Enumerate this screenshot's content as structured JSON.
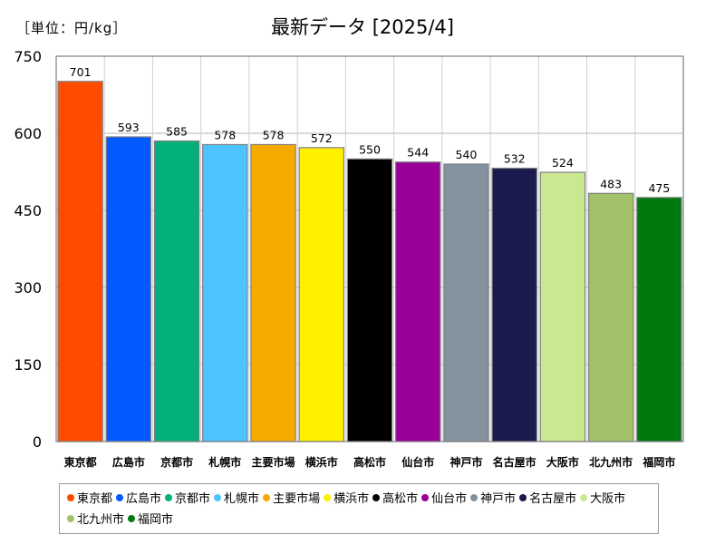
{
  "unit_label": "［単位：円/kg］",
  "chart_data": {
    "type": "bar",
    "title": "最新データ [2025/4]",
    "categories": [
      "東京都",
      "広島市",
      "京都市",
      "札幌市",
      "主要市場",
      "横浜市",
      "高松市",
      "仙台市",
      "神戸市",
      "名古屋市",
      "大阪市",
      "北九州市",
      "福岡市"
    ],
    "values": [
      701,
      593,
      585,
      578,
      578,
      572,
      550,
      544,
      540,
      532,
      524,
      483,
      475
    ],
    "colors": [
      "#ff4b00",
      "#005aff",
      "#03af7a",
      "#4dc4ff",
      "#f6aa00",
      "#fff100",
      "#000000",
      "#990099",
      "#84919e",
      "#1a1a4e",
      "#c9e88f",
      "#a2c26a",
      "#007a0f"
    ],
    "ylim": [
      0,
      750
    ],
    "yticks": [
      0,
      150,
      300,
      450,
      600,
      750
    ],
    "grid": true,
    "legend_position": "bottom"
  }
}
